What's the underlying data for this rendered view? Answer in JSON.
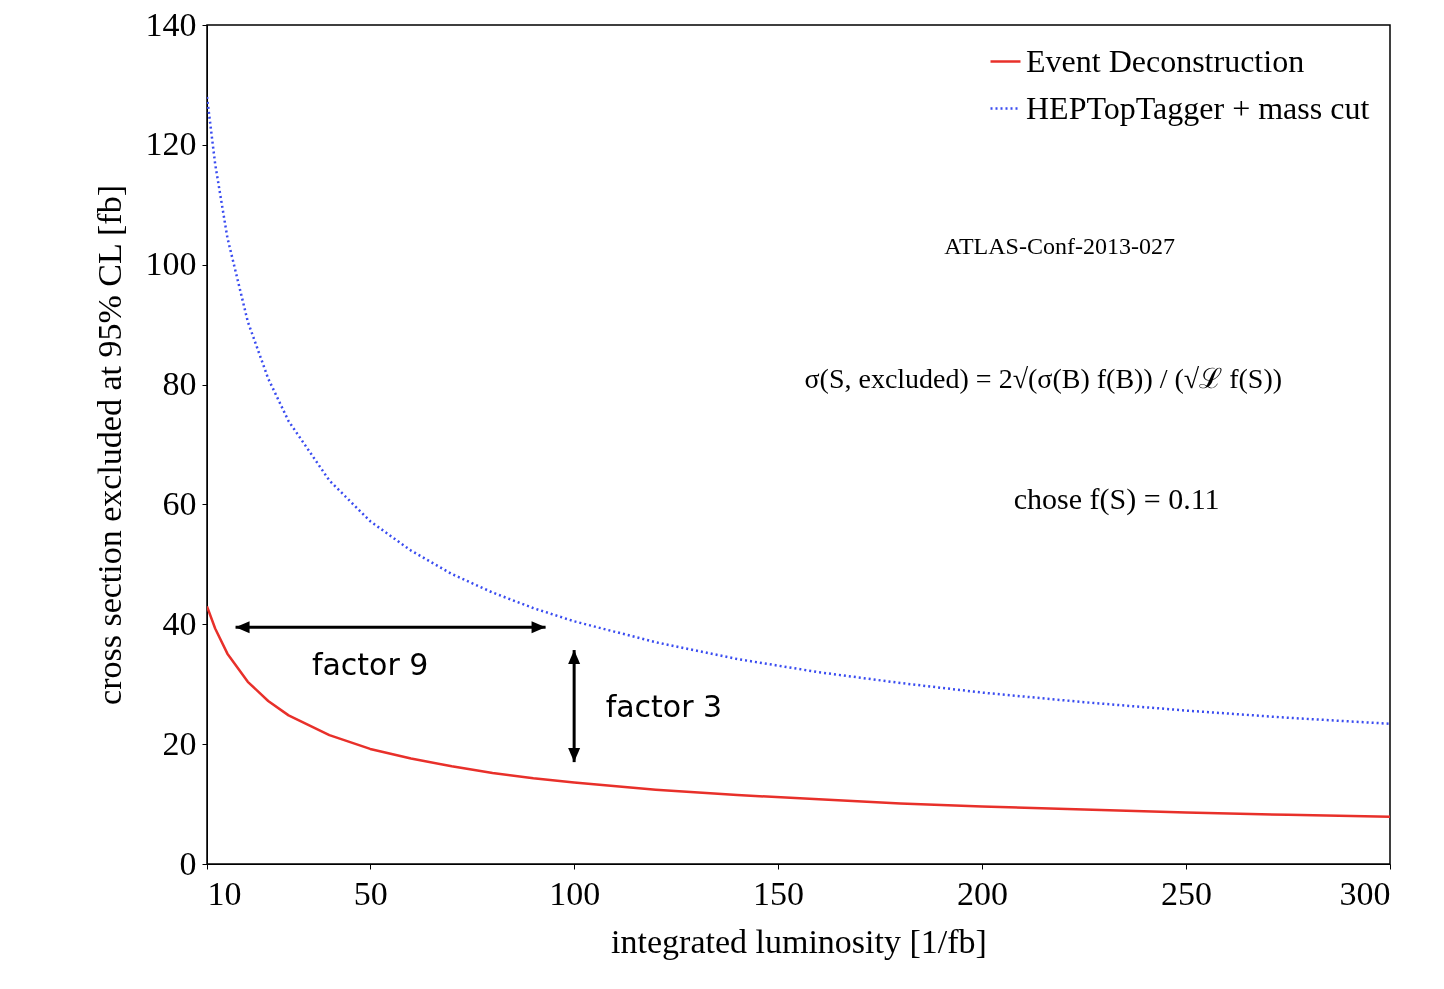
{
  "chart_data": {
    "type": "line",
    "xlabel": "integrated luminosity [1/fb]",
    "ylabel": "cross section excluded at 95% CL [fb]",
    "x": [
      10,
      12,
      15,
      20,
      25,
      30,
      40,
      50,
      60,
      70,
      80,
      90,
      100,
      120,
      140,
      160,
      180,
      200,
      225,
      250,
      275,
      300
    ],
    "series": [
      {
        "name": "Event Deconstruction",
        "color": "#e8302a",
        "line_style": "solid",
        "values": [
          43,
          39.3,
          35.1,
          30.4,
          27.2,
          24.8,
          21.5,
          19.2,
          17.6,
          16.3,
          15.2,
          14.3,
          13.6,
          12.4,
          11.5,
          10.8,
          10.1,
          9.6,
          9.1,
          8.6,
          8.2,
          7.9
        ]
      },
      {
        "name": "HEPTopTagger + mass cut",
        "color": "#3a4cf0",
        "line_style": "dotted",
        "values": [
          128,
          116.8,
          104.5,
          90.5,
          81,
          73.9,
          64,
          57.2,
          52.3,
          48.4,
          45.3,
          42.7,
          40.5,
          37,
          34.2,
          32,
          30.2,
          28.6,
          27,
          25.6,
          24.4,
          23.4
        ]
      }
    ],
    "xlim": [
      10,
      300
    ],
    "xticks": [
      10,
      50,
      100,
      150,
      200,
      250,
      300
    ],
    "ylim": [
      0,
      140
    ],
    "yticks": [
      0,
      20,
      40,
      60,
      80,
      100,
      120,
      140
    ],
    "grid": false,
    "legend": "top right",
    "annotations": [
      "ATLAS-Conf-2013-027",
      "σ(S, excluded) = 2√(σ(B) f(B)) / (√ℒ f(S))",
      "chose  f(S) = 0.11",
      "factor 9",
      "factor 3"
    ]
  }
}
